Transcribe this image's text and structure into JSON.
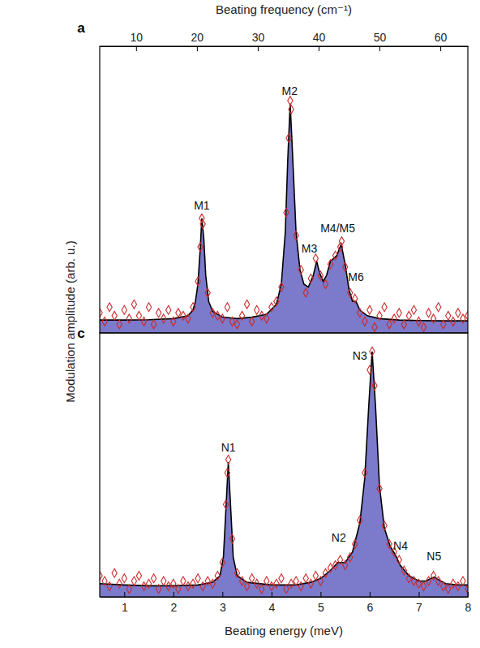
{
  "chart_data": [
    {
      "type": "area",
      "panel_label": "a",
      "x2label": "Beating frequency (cm⁻¹)",
      "ylabel": "Modulation amplitude (arb. u.)",
      "xlim": [
        0.5,
        8.0
      ],
      "x2lim": [
        4.03,
        64.52
      ],
      "x2ticks": [
        10,
        20,
        30,
        40,
        50,
        60
      ],
      "ylim": [
        0,
        1
      ],
      "tick_labels": "x",
      "grid": false,
      "series": [
        {
          "type": "area",
          "color": "#7b7acb",
          "x": [
            0.5,
            1.0,
            1.5,
            2.0,
            2.3,
            2.4,
            2.45,
            2.5,
            2.55,
            2.58,
            2.62,
            2.66,
            2.72,
            2.8,
            3.0,
            3.3,
            3.6,
            3.9,
            4.1,
            4.2,
            4.28,
            4.33,
            4.38,
            4.43,
            4.5,
            4.58,
            4.66,
            4.75,
            4.85,
            4.92,
            4.98,
            5.05,
            5.12,
            5.2,
            5.27,
            5.33,
            5.42,
            5.5,
            5.58,
            5.65,
            5.72,
            5.8,
            5.95,
            6.2,
            6.6,
            7.0,
            7.5,
            8.0
          ],
          "values": [
            0.045,
            0.045,
            0.046,
            0.05,
            0.06,
            0.08,
            0.11,
            0.17,
            0.3,
            0.4,
            0.33,
            0.2,
            0.11,
            0.075,
            0.055,
            0.05,
            0.055,
            0.065,
            0.1,
            0.17,
            0.35,
            0.6,
            0.8,
            0.62,
            0.35,
            0.22,
            0.17,
            0.16,
            0.2,
            0.25,
            0.21,
            0.18,
            0.2,
            0.25,
            0.26,
            0.27,
            0.31,
            0.24,
            0.15,
            0.11,
            0.11,
            0.08,
            0.06,
            0.05,
            0.045,
            0.043,
            0.042,
            0.042
          ]
        },
        {
          "type": "scatter",
          "color": "#cc2a2a",
          "marker": "diamond",
          "x": [
            0.5,
            0.6,
            0.7,
            0.8,
            0.9,
            1.0,
            1.1,
            1.2,
            1.3,
            1.4,
            1.5,
            1.6,
            1.7,
            1.8,
            1.9,
            2.0,
            2.1,
            2.2,
            2.3,
            2.4,
            2.5,
            2.6,
            2.7,
            2.8,
            2.9,
            3.0,
            3.1,
            3.2,
            3.3,
            3.4,
            3.5,
            3.6,
            3.7,
            3.8,
            3.9,
            4.0,
            4.1,
            4.2,
            4.3,
            4.4,
            4.5,
            4.6,
            4.7,
            4.8,
            4.9,
            5.0,
            5.1,
            5.2,
            5.3,
            5.4,
            5.5,
            5.6,
            5.7,
            5.8,
            5.9,
            6.0,
            6.1,
            6.2,
            6.3,
            6.4,
            6.5,
            6.6,
            6.7,
            6.8,
            6.9,
            7.0,
            7.1,
            7.2,
            7.3,
            7.4,
            7.5,
            7.6,
            7.7,
            7.8,
            7.9,
            8.0,
            2.55,
            2.58,
            4.35,
            4.38,
            5.43
          ],
          "values": [
            0.07,
            0.04,
            0.09,
            0.06,
            0.03,
            0.08,
            0.05,
            0.1,
            0.06,
            0.04,
            0.09,
            0.03,
            0.07,
            0.05,
            0.08,
            0.04,
            0.07,
            0.06,
            0.05,
            0.09,
            0.18,
            0.38,
            0.14,
            0.07,
            0.06,
            0.05,
            0.09,
            0.04,
            0.03,
            0.06,
            0.1,
            0.04,
            0.08,
            0.06,
            0.05,
            0.09,
            0.11,
            0.16,
            0.42,
            0.78,
            0.34,
            0.22,
            0.14,
            0.19,
            0.26,
            0.2,
            0.17,
            0.24,
            0.27,
            0.3,
            0.23,
            0.14,
            0.12,
            0.07,
            0.04,
            0.08,
            0.02,
            0.06,
            0.09,
            0.03,
            0.05,
            0.07,
            0.03,
            0.06,
            0.08,
            0.04,
            0.02,
            0.07,
            0.05,
            0.09,
            0.03,
            0.06,
            0.04,
            0.07,
            0.05,
            0.06,
            0.3,
            0.4,
            0.68,
            0.81,
            0.32
          ]
        }
      ],
      "annotations": [
        {
          "text": "M1",
          "x": 2.58,
          "y": 0.43
        },
        {
          "text": "M2",
          "x": 4.37,
          "y": 0.83
        },
        {
          "text": "M3",
          "x": 4.77,
          "y": 0.28
        },
        {
          "text": "M4/M5",
          "x": 5.35,
          "y": 0.35
        },
        {
          "text": "M6",
          "x": 5.72,
          "y": 0.18
        }
      ]
    },
    {
      "type": "area",
      "panel_label": "c",
      "xlabel": "Beating energy (meV)",
      "xlim": [
        0.5,
        8.0
      ],
      "xticks": [
        1,
        2,
        3,
        4,
        5,
        6,
        7,
        8
      ],
      "ylim": [
        0,
        1
      ],
      "tick_labels": "x",
      "grid": false,
      "series": [
        {
          "type": "area",
          "color": "#7b7acb",
          "x": [
            0.5,
            1.0,
            1.5,
            2.0,
            2.5,
            2.8,
            2.95,
            3.02,
            3.07,
            3.12,
            3.17,
            3.22,
            3.3,
            3.5,
            4.0,
            4.5,
            4.8,
            5.0,
            5.2,
            5.35,
            5.5,
            5.65,
            5.8,
            5.9,
            5.98,
            6.05,
            6.12,
            6.2,
            6.3,
            6.42,
            6.52,
            6.62,
            6.8,
            7.0,
            7.15,
            7.25,
            7.32,
            7.4,
            7.55,
            7.8,
            8.0
          ],
          "values": [
            0.05,
            0.045,
            0.042,
            0.042,
            0.045,
            0.055,
            0.08,
            0.15,
            0.33,
            0.51,
            0.33,
            0.15,
            0.08,
            0.055,
            0.045,
            0.045,
            0.055,
            0.07,
            0.1,
            0.13,
            0.13,
            0.17,
            0.28,
            0.45,
            0.72,
            0.93,
            0.72,
            0.42,
            0.26,
            0.19,
            0.16,
            0.12,
            0.08,
            0.06,
            0.06,
            0.07,
            0.075,
            0.065,
            0.05,
            0.045,
            0.045
          ]
        },
        {
          "type": "scatter",
          "color": "#cc2a2a",
          "marker": "diamond",
          "x": [
            0.5,
            0.6,
            0.7,
            0.8,
            0.9,
            1.0,
            1.1,
            1.2,
            1.3,
            1.4,
            1.5,
            1.6,
            1.7,
            1.8,
            1.9,
            2.0,
            2.1,
            2.2,
            2.3,
            2.4,
            2.5,
            2.6,
            2.7,
            2.8,
            2.9,
            3.0,
            3.1,
            3.2,
            3.3,
            3.4,
            3.5,
            3.6,
            3.7,
            3.8,
            3.9,
            4.0,
            4.1,
            4.2,
            4.3,
            4.4,
            4.5,
            4.6,
            4.7,
            4.8,
            4.9,
            5.0,
            5.1,
            5.2,
            5.3,
            5.4,
            5.5,
            5.6,
            5.7,
            5.8,
            5.9,
            6.0,
            6.1,
            6.2,
            6.3,
            6.4,
            6.5,
            6.6,
            6.7,
            6.8,
            6.9,
            7.0,
            7.1,
            7.2,
            7.3,
            7.4,
            7.5,
            7.6,
            7.7,
            7.8,
            7.9,
            8.0,
            3.07,
            3.12,
            6.05
          ],
          "values": [
            0.08,
            0.06,
            0.04,
            0.09,
            0.05,
            0.07,
            0.03,
            0.06,
            0.08,
            0.04,
            0.05,
            0.07,
            0.03,
            0.06,
            0.04,
            0.05,
            0.03,
            0.06,
            0.04,
            0.05,
            0.07,
            0.04,
            0.06,
            0.05,
            0.08,
            0.13,
            0.47,
            0.22,
            0.09,
            0.06,
            0.04,
            0.07,
            0.05,
            0.03,
            0.06,
            0.04,
            0.05,
            0.07,
            0.03,
            0.05,
            0.06,
            0.04,
            0.07,
            0.05,
            0.08,
            0.06,
            0.09,
            0.11,
            0.12,
            0.14,
            0.12,
            0.15,
            0.2,
            0.29,
            0.47,
            0.86,
            0.8,
            0.41,
            0.27,
            0.2,
            0.17,
            0.14,
            0.1,
            0.07,
            0.06,
            0.05,
            0.04,
            0.06,
            0.08,
            0.06,
            0.04,
            0.03,
            0.05,
            0.04,
            0.06,
            0.03,
            0.35,
            0.52,
            0.93
          ]
        }
      ],
      "annotations": [
        {
          "text": "N1",
          "x": 3.12,
          "y": 0.55
        },
        {
          "text": "N2",
          "x": 5.37,
          "y": 0.21
        },
        {
          "text": "N3",
          "x": 5.8,
          "y": 0.9
        },
        {
          "text": "N4",
          "x": 6.63,
          "y": 0.18
        },
        {
          "text": "N5",
          "x": 7.31,
          "y": 0.14
        }
      ]
    }
  ]
}
